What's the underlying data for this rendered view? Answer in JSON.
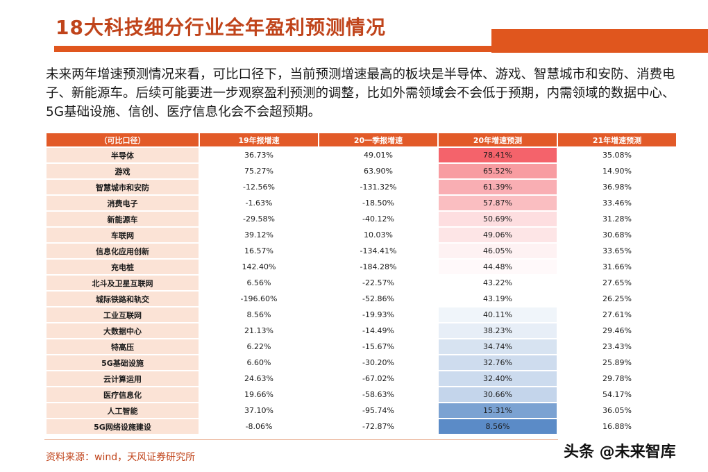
{
  "slide": {
    "title": "18大科技细分行业全年盈利预测情况",
    "intro": "未来两年增速预测情况来看，可比口径下，当前预测增速最高的板块是半导体、游戏、智慧城市和安防、消费电子、新能源车。后续可能要进一步观察盈利预测的调整，比如外需领域会不会低于预期，内需领域的数据中心、5G基础设施、信创、医疗信息化会不会超预期。",
    "source": "资料来源：wind，天风证券研究所",
    "watermark": "头条 @未来智库",
    "colors": {
      "accent": "#e0561e",
      "header": "#e25a28",
      "rowname_bg": "#fbe3d6",
      "high": "#f4636b",
      "low": "#5b8bc7"
    }
  },
  "table": {
    "headers": [
      "（可比口径）",
      "19年报增速",
      "20一季报增速",
      "20年增速预测",
      "21年增速预测"
    ],
    "rows": [
      {
        "name": "半导体",
        "c1": "36.73%",
        "c2": "49.01%",
        "c3": "78.41%",
        "c4": "35.08%",
        "v3": 78.41
      },
      {
        "name": "游戏",
        "c1": "75.27%",
        "c2": "63.90%",
        "c3": "65.52%",
        "c4": "14.90%",
        "v3": 65.52
      },
      {
        "name": "智慧城市和安防",
        "c1": "-12.56%",
        "c2": "-131.32%",
        "c3": "61.39%",
        "c4": "36.98%",
        "v3": 61.39
      },
      {
        "name": "消费电子",
        "c1": "-1.63%",
        "c2": "-18.50%",
        "c3": "57.87%",
        "c4": "33.46%",
        "v3": 57.87
      },
      {
        "name": "新能源车",
        "c1": "-29.58%",
        "c2": "-40.12%",
        "c3": "50.69%",
        "c4": "31.28%",
        "v3": 50.69
      },
      {
        "name": "车联网",
        "c1": "39.12%",
        "c2": "10.03%",
        "c3": "49.06%",
        "c4": "30.68%",
        "v3": 49.06
      },
      {
        "name": "信息化应用创新",
        "c1": "16.57%",
        "c2": "-134.41%",
        "c3": "46.05%",
        "c4": "33.65%",
        "v3": 46.05
      },
      {
        "name": "充电桩",
        "c1": "142.40%",
        "c2": "-184.28%",
        "c3": "44.48%",
        "c4": "31.66%",
        "v3": 44.48
      },
      {
        "name": "北斗及卫星互联网",
        "c1": "6.56%",
        "c2": "-22.57%",
        "c3": "43.22%",
        "c4": "27.65%",
        "v3": 43.22
      },
      {
        "name": "城际铁路和轨交",
        "c1": "-196.60%",
        "c2": "-52.86%",
        "c3": "43.19%",
        "c4": "26.25%",
        "v3": 43.19
      },
      {
        "name": "工业互联网",
        "c1": "8.56%",
        "c2": "-19.93%",
        "c3": "40.11%",
        "c4": "27.61%",
        "v3": 40.11
      },
      {
        "name": "大数据中心",
        "c1": "21.13%",
        "c2": "-14.49%",
        "c3": "38.23%",
        "c4": "29.46%",
        "v3": 38.23
      },
      {
        "name": "特高压",
        "c1": "6.22%",
        "c2": "-15.67%",
        "c3": "34.74%",
        "c4": "23.43%",
        "v3": 34.74
      },
      {
        "name": "5G基础设施",
        "c1": "6.60%",
        "c2": "-30.20%",
        "c3": "32.76%",
        "c4": "25.89%",
        "v3": 32.76
      },
      {
        "name": "云计算运用",
        "c1": "24.63%",
        "c2": "-67.02%",
        "c3": "32.40%",
        "c4": "29.78%",
        "v3": 32.4
      },
      {
        "name": "医疗信息化",
        "c1": "19.66%",
        "c2": "-58.63%",
        "c3": "30.66%",
        "c4": "54.17%",
        "v3": 30.66
      },
      {
        "name": "人工智能",
        "c1": "37.10%",
        "c2": "-95.74%",
        "c3": "15.31%",
        "c4": "36.05%",
        "v3": 15.31
      },
      {
        "name": "5G网络设施建设",
        "c1": "-8.06%",
        "c2": "-72.87%",
        "c3": "8.56%",
        "c4": "16.88%",
        "v3": 8.56
      }
    ]
  }
}
